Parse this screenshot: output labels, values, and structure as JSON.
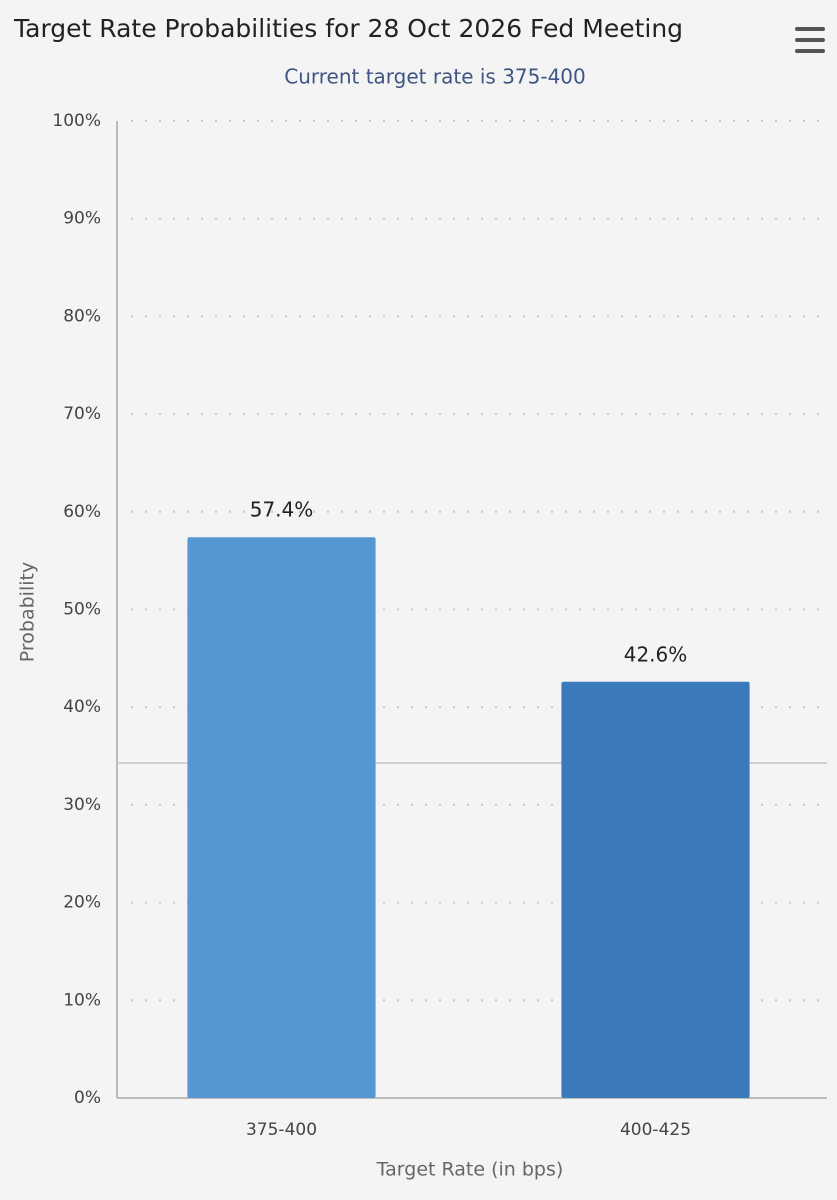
{
  "chart_data": {
    "type": "bar",
    "title": "Target Rate Probabilities for 28 Oct 2026 Fed Meeting",
    "subtitle": "Current target rate is 375-400",
    "x_label": "Target Rate (in bps)",
    "y_label": "Probability",
    "categories": [
      "375-400",
      "400-425"
    ],
    "values": [
      57.4,
      42.6
    ],
    "value_labels": [
      "57.4%",
      "42.6%"
    ],
    "colors": [
      "#5597d3",
      "#3a7aba"
    ],
    "ylim": [
      0,
      100
    ],
    "yticks": [
      {
        "value": 0,
        "label": "0%"
      },
      {
        "value": 10,
        "label": "10%"
      },
      {
        "value": 20,
        "label": "20%"
      },
      {
        "value": 30,
        "label": "30%"
      },
      {
        "value": 40,
        "label": "40%"
      },
      {
        "value": 50,
        "label": "50%"
      },
      {
        "value": 60,
        "label": "60%"
      },
      {
        "value": 70,
        "label": "70%"
      },
      {
        "value": 80,
        "label": "80%"
      },
      {
        "value": 90,
        "label": "90%"
      },
      {
        "value": 100,
        "label": "100%"
      }
    ],
    "grid": true
  }
}
